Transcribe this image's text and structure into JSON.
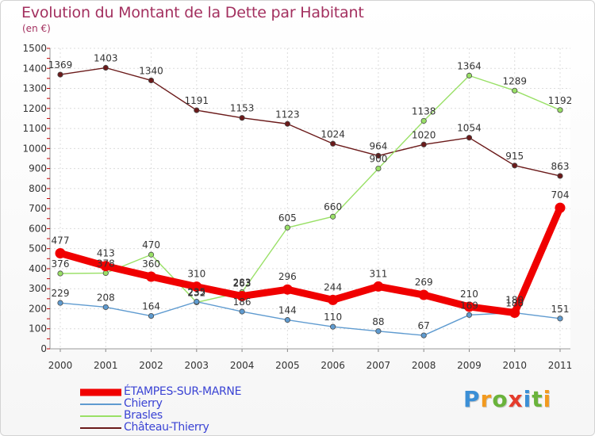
{
  "header": {
    "title": "Evolution du Montant de la Dette par Habitant",
    "unit": "(en €)"
  },
  "branding": {
    "logo_letters": [
      "P",
      "r",
      "o",
      "x",
      "i",
      "t",
      "i"
    ],
    "logo_colors": [
      "#3b8fd6",
      "#f29a1f",
      "#6ab33b",
      "#e53c2c",
      "#3b8fd6",
      "#6ab33b",
      "#f29a1f"
    ]
  },
  "chart_data": {
    "type": "line",
    "title": "Evolution du Montant de la Dette par Habitant",
    "subtitle": "(en €)",
    "xlabel": "",
    "ylabel": "",
    "x": [
      "2000",
      "2001",
      "2002",
      "2003",
      "2004",
      "2005",
      "2006",
      "2007",
      "2008",
      "2009",
      "2010",
      "2011"
    ],
    "ylim": [
      0,
      1500
    ],
    "yticks": [
      0,
      100,
      200,
      300,
      400,
      500,
      600,
      700,
      800,
      900,
      1000,
      1100,
      1200,
      1300,
      1400,
      1500
    ],
    "grid": true,
    "legend_position": "bottom-left",
    "series": [
      {
        "name": "Château-Thierry",
        "color": "#6b1a1a",
        "emphasis": false,
        "values": [
          1369,
          1403,
          1340,
          1191,
          1153,
          1123,
          1024,
          964,
          1020,
          1054,
          915,
          863
        ]
      },
      {
        "name": "Brasles",
        "color": "#99e066",
        "emphasis": false,
        "values": [
          376,
          378,
          470,
          232,
          283,
          605,
          660,
          900,
          1138,
          1364,
          1289,
          1192
        ]
      },
      {
        "name": "Chierry",
        "color": "#5f9bd0",
        "emphasis": false,
        "values": [
          229,
          208,
          164,
          235,
          186,
          144,
          110,
          88,
          67,
          169,
          180,
          151
        ]
      },
      {
        "name": "ÉTAMPES-SUR-MARNE",
        "color": "#f00000",
        "emphasis": true,
        "values": [
          477,
          413,
          360,
          310,
          263,
          296,
          244,
          311,
          269,
          210,
          180,
          704
        ]
      }
    ]
  }
}
